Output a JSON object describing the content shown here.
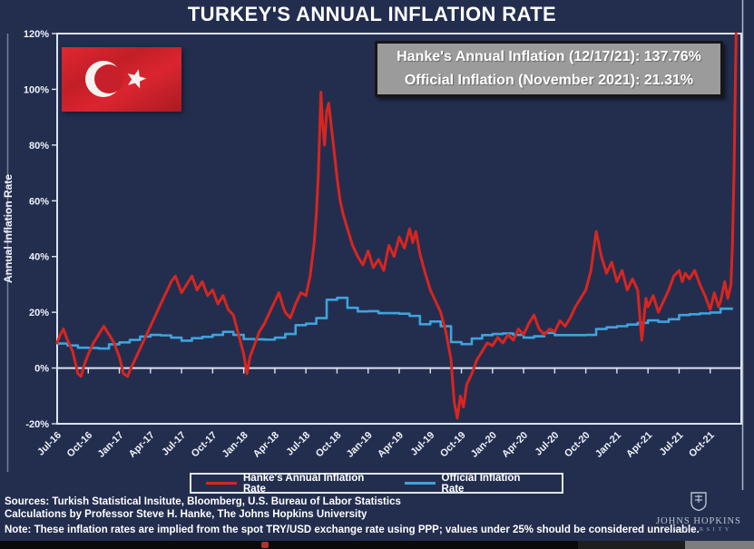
{
  "page": {
    "background": "#232e4f",
    "frame_color": "#dce3ef"
  },
  "header": {
    "title": "TURKEY'S ANNUAL INFLATION RATE"
  },
  "annotation": {
    "line1": "Hanke's Annual Inflation (12/17/21): 137.76%",
    "line2": "Official Inflation (November 2021): 21.31%",
    "bg": "#9b9b9b",
    "text_color": "#ffffff"
  },
  "legend": {
    "hanke_label": "Hanke's Annual Inflation Rate",
    "official_label": "Official Inflation Rate"
  },
  "footer": {
    "sources": "Sources: Turkish Statistical Insitute, Bloomberg, U.S. Bureau of Labor Statistics",
    "calculations": "Calculations by Professor Steve H. Hanke, The Johns Hopkins University",
    "note": "Note: These inflation rates are implied from the spot TRY/USD exchange rate using PPP; values under 25% should be considered unreliable.",
    "logo_line1": "JOHNS HOPKINS",
    "logo_line2": "UNIVERSITY"
  },
  "chart_data": {
    "type": "line",
    "title": "TURKEY'S ANNUAL INFLATION RATE",
    "ylabel": "Annual Inflation Rate",
    "ylim": [
      -20,
      120
    ],
    "grid": false,
    "legend_position": "bottom",
    "x_start": "Jul-2016",
    "x_end": "Dec-2021",
    "x_unit": "months since Jul-2016 (ticks quarterly)",
    "y_tick_values": [
      120,
      100,
      80,
      60,
      40,
      20,
      0,
      -20
    ],
    "y_tick_labels": [
      "120%",
      "100%",
      "80%",
      "60%",
      "40%",
      "20%",
      "0%",
      "-20%"
    ],
    "x_tick_labels": [
      "Jul-16",
      "Oct-16",
      "Jan-17",
      "Apr-17",
      "Jul-17",
      "Oct-17",
      "Jan-18",
      "Apr-18",
      "Jul-18",
      "Oct-18",
      "Jan-19",
      "Apr-19",
      "Jul-19",
      "Oct-19",
      "Jan-20",
      "Apr-20",
      "Jul-20",
      "Oct-20",
      "Jan-21",
      "Apr-21",
      "Jul-21",
      "Oct-21"
    ],
    "series": [
      {
        "name": "Hanke's Annual Inflation Rate",
        "color": "#d9251f",
        "line_style": "jagged",
        "note": "final value 137.76% on 12/17/21, clipped at 120% axis top",
        "points_m_v": [
          [
            0,
            9
          ],
          [
            0.3,
            12
          ],
          [
            0.6,
            14
          ],
          [
            1,
            10
          ],
          [
            1.5,
            6
          ],
          [
            2,
            -2
          ],
          [
            2.3,
            -3
          ],
          [
            2.6,
            1
          ],
          [
            3,
            5
          ],
          [
            3.5,
            9
          ],
          [
            4,
            12
          ],
          [
            4.5,
            15
          ],
          [
            5,
            12
          ],
          [
            5.5,
            9
          ],
          [
            6,
            4
          ],
          [
            6.4,
            -2
          ],
          [
            6.8,
            -3
          ],
          [
            7,
            -1
          ],
          [
            7.5,
            3
          ],
          [
            8,
            7
          ],
          [
            8.5,
            11
          ],
          [
            9,
            15
          ],
          [
            9.5,
            19
          ],
          [
            10,
            23
          ],
          [
            10.5,
            27
          ],
          [
            11,
            31
          ],
          [
            11.4,
            33
          ],
          [
            11.8,
            29
          ],
          [
            12,
            27
          ],
          [
            12.5,
            30
          ],
          [
            13,
            33
          ],
          [
            13.5,
            28
          ],
          [
            14,
            31
          ],
          [
            14.5,
            26
          ],
          [
            15,
            28
          ],
          [
            15.5,
            23
          ],
          [
            16,
            26
          ],
          [
            16.5,
            21
          ],
          [
            17,
            19
          ],
          [
            17.5,
            12
          ],
          [
            18,
            5
          ],
          [
            18.3,
            -2
          ],
          [
            18.6,
            4
          ],
          [
            19,
            8
          ],
          [
            19.5,
            13
          ],
          [
            20,
            16
          ],
          [
            20.5,
            20
          ],
          [
            21,
            24
          ],
          [
            21.4,
            27
          ],
          [
            21.8,
            22
          ],
          [
            22,
            20
          ],
          [
            22.5,
            18
          ],
          [
            23,
            23
          ],
          [
            23.5,
            27
          ],
          [
            24,
            26
          ],
          [
            24.4,
            33
          ],
          [
            24.8,
            45
          ],
          [
            25,
            55
          ],
          [
            25.2,
            70
          ],
          [
            25.45,
            99
          ],
          [
            25.6,
            88
          ],
          [
            25.8,
            80
          ],
          [
            26,
            92
          ],
          [
            26.2,
            95
          ],
          [
            26.5,
            85
          ],
          [
            26.8,
            75
          ],
          [
            27,
            68
          ],
          [
            27.3,
            60
          ],
          [
            27.6,
            55
          ],
          [
            28,
            50
          ],
          [
            28.5,
            44
          ],
          [
            29,
            40
          ],
          [
            29.5,
            37
          ],
          [
            30,
            42
          ],
          [
            30.5,
            36
          ],
          [
            31,
            39
          ],
          [
            31.5,
            35
          ],
          [
            32,
            44
          ],
          [
            32.5,
            40
          ],
          [
            33,
            47
          ],
          [
            33.5,
            43
          ],
          [
            34,
            50
          ],
          [
            34.3,
            45
          ],
          [
            34.6,
            49
          ],
          [
            35,
            41
          ],
          [
            35.5,
            34
          ],
          [
            36,
            28
          ],
          [
            36.5,
            24
          ],
          [
            37,
            20
          ],
          [
            37.5,
            13
          ],
          [
            38,
            3
          ],
          [
            38.3,
            -12
          ],
          [
            38.6,
            -18
          ],
          [
            38.9,
            -10
          ],
          [
            39.2,
            -14
          ],
          [
            39.5,
            -6
          ],
          [
            40,
            -2
          ],
          [
            40.5,
            3
          ],
          [
            41,
            6
          ],
          [
            41.5,
            9
          ],
          [
            42,
            8
          ],
          [
            42.5,
            11
          ],
          [
            43,
            9
          ],
          [
            43.5,
            12
          ],
          [
            44,
            10
          ],
          [
            44.5,
            14
          ],
          [
            45,
            12
          ],
          [
            45.5,
            16
          ],
          [
            46,
            19
          ],
          [
            46.5,
            14
          ],
          [
            47,
            12
          ],
          [
            47.5,
            14
          ],
          [
            48,
            13
          ],
          [
            48.5,
            17
          ],
          [
            49,
            15
          ],
          [
            49.5,
            18
          ],
          [
            50,
            22
          ],
          [
            50.5,
            25
          ],
          [
            51,
            28
          ],
          [
            51.5,
            35
          ],
          [
            52,
            49
          ],
          [
            52.5,
            40
          ],
          [
            53,
            34
          ],
          [
            53.5,
            38
          ],
          [
            54,
            31
          ],
          [
            54.5,
            35
          ],
          [
            55,
            28
          ],
          [
            55.5,
            32
          ],
          [
            56,
            28
          ],
          [
            56.4,
            10
          ],
          [
            56.8,
            25
          ],
          [
            57,
            22
          ],
          [
            57.5,
            26
          ],
          [
            58,
            20
          ],
          [
            58.5,
            24
          ],
          [
            59,
            28
          ],
          [
            59.5,
            33
          ],
          [
            60,
            35
          ],
          [
            60.3,
            31
          ],
          [
            60.6,
            34
          ],
          [
            61,
            32
          ],
          [
            61.5,
            35
          ],
          [
            62,
            30
          ],
          [
            62.5,
            26
          ],
          [
            63,
            21
          ],
          [
            63.4,
            27
          ],
          [
            63.8,
            22
          ],
          [
            64,
            24
          ],
          [
            64.4,
            31
          ],
          [
            64.7,
            25
          ],
          [
            65,
            30
          ],
          [
            65.15,
            45
          ],
          [
            65.3,
            70
          ],
          [
            65.4,
            95
          ],
          [
            65.5,
            120
          ]
        ]
      },
      {
        "name": "Official Inflation Rate",
        "color": "#3fa3dc",
        "line_style": "step",
        "points_m_v": [
          [
            0,
            8.8
          ],
          [
            1,
            8.1
          ],
          [
            2,
            7.3
          ],
          [
            3,
            7.2
          ],
          [
            4,
            7.0
          ],
          [
            5,
            8.5
          ],
          [
            6,
            9.2
          ],
          [
            7,
            10.1
          ],
          [
            8,
            11.3
          ],
          [
            9,
            11.9
          ],
          [
            10,
            11.7
          ],
          [
            11,
            10.9
          ],
          [
            12,
            9.8
          ],
          [
            13,
            10.7
          ],
          [
            14,
            11.2
          ],
          [
            15,
            11.9
          ],
          [
            16,
            13.0
          ],
          [
            17,
            11.9
          ],
          [
            18,
            10.4
          ],
          [
            19,
            10.3
          ],
          [
            20,
            10.2
          ],
          [
            21,
            10.9
          ],
          [
            22,
            12.2
          ],
          [
            23,
            15.4
          ],
          [
            24,
            15.9
          ],
          [
            25,
            17.9
          ],
          [
            26,
            24.5
          ],
          [
            27,
            25.2
          ],
          [
            28,
            21.6
          ],
          [
            29,
            20.3
          ],
          [
            30,
            20.4
          ],
          [
            31,
            19.7
          ],
          [
            32,
            19.7
          ],
          [
            33,
            19.5
          ],
          [
            34,
            18.7
          ],
          [
            35,
            15.7
          ],
          [
            36,
            16.7
          ],
          [
            37,
            15.0
          ],
          [
            38,
            9.3
          ],
          [
            39,
            8.6
          ],
          [
            40,
            10.6
          ],
          [
            41,
            11.8
          ],
          [
            42,
            12.2
          ],
          [
            43,
            12.4
          ],
          [
            44,
            11.9
          ],
          [
            45,
            10.9
          ],
          [
            46,
            11.4
          ],
          [
            47,
            12.6
          ],
          [
            48,
            11.8
          ],
          [
            49,
            11.8
          ],
          [
            50,
            11.8
          ],
          [
            51,
            11.9
          ],
          [
            52,
            14.0
          ],
          [
            53,
            14.6
          ],
          [
            54,
            15.0
          ],
          [
            55,
            15.6
          ],
          [
            56,
            16.2
          ],
          [
            57,
            17.1
          ],
          [
            58,
            16.6
          ],
          [
            59,
            17.5
          ],
          [
            60,
            19.0
          ],
          [
            61,
            19.3
          ],
          [
            62,
            19.6
          ],
          [
            63,
            19.9
          ],
          [
            64,
            21.3
          ]
        ]
      }
    ]
  }
}
